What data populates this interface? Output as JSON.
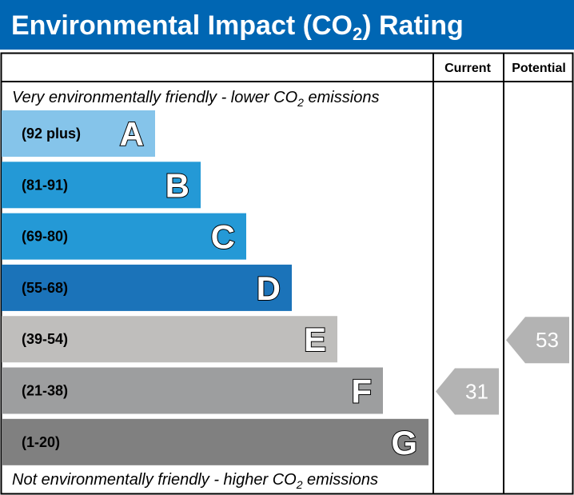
{
  "title_main": "Environmental Impact (CO",
  "title_sub": "2",
  "title_end": ") Rating",
  "header_current": "Current",
  "header_potential": "Potential",
  "top_note_main": "Very environmentally friendly - lower CO",
  "top_note_sub": "2",
  "top_note_end": " emissions",
  "bottom_note_main": "Not environmentally friendly - higher CO",
  "bottom_note_sub": "2",
  "bottom_note_end": " emissions",
  "colors": {
    "title_bg": "#0066b3",
    "border": "#000000",
    "marker": "#b3b3b3"
  },
  "chart_data": {
    "type": "bar",
    "categories": [
      "A",
      "B",
      "C",
      "D",
      "E",
      "F",
      "G"
    ],
    "ranges": [
      "(92 plus)",
      "(81-91)",
      "(69-80)",
      "(55-68)",
      "(39-54)",
      "(21-38)",
      "(1-20)"
    ],
    "bands": [
      {
        "letter": "A",
        "min": 92,
        "max": null,
        "color": "#85c4ea"
      },
      {
        "letter": "B",
        "min": 81,
        "max": 91,
        "color": "#2499d6"
      },
      {
        "letter": "C",
        "min": 69,
        "max": 80,
        "color": "#2499d6"
      },
      {
        "letter": "D",
        "min": 55,
        "max": 68,
        "color": "#1b73b9"
      },
      {
        "letter": "E",
        "min": 39,
        "max": 54,
        "color": "#bfbebc"
      },
      {
        "letter": "F",
        "min": 21,
        "max": 38,
        "color": "#9d9e9f"
      },
      {
        "letter": "G",
        "min": 1,
        "max": 20,
        "color": "#808080"
      }
    ],
    "current": {
      "value": 31,
      "band": "F"
    },
    "potential": {
      "value": 53,
      "band": "E"
    }
  }
}
